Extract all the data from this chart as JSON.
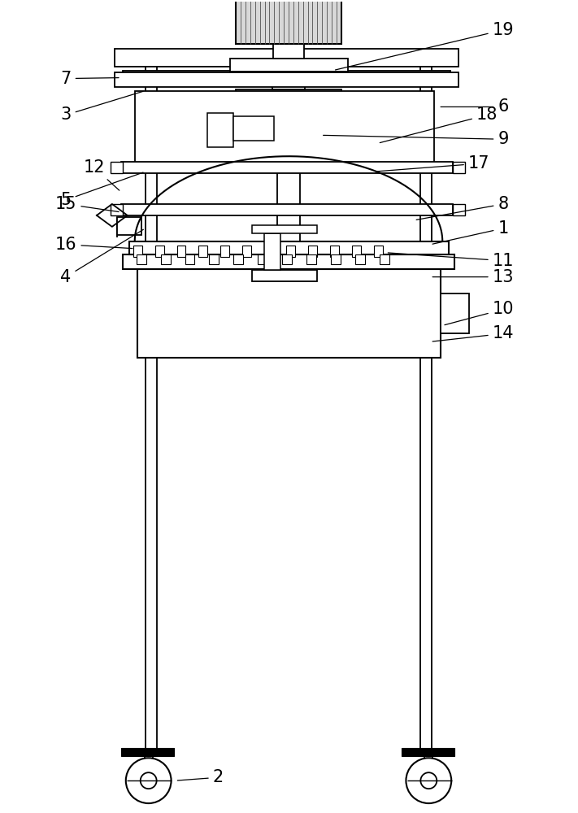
{
  "bg_color": "#ffffff",
  "lc": "#000000",
  "fig_w": 7.11,
  "fig_h": 10.0,
  "dpi": 100
}
